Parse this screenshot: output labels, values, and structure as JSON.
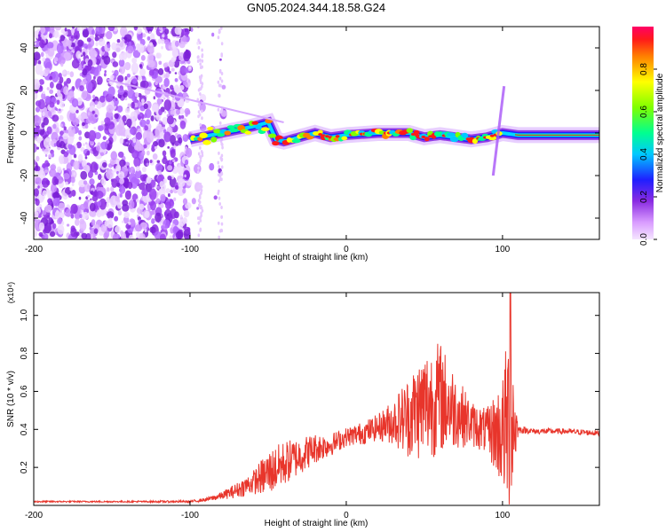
{
  "title": "GN05.2024.344.18.58.G24",
  "chart_data": [
    {
      "type": "heatmap",
      "xlabel": "Height of straight line (km)",
      "ylabel": "Frequency (Hz)",
      "xlim": [
        -200,
        162
      ],
      "ylim": [
        -50,
        50
      ],
      "xticks": [
        -200,
        -100,
        0,
        100
      ],
      "yticks": [
        -40,
        -20,
        0,
        20,
        40
      ],
      "grid": false,
      "colorbar": {
        "label": "Normalized spectral amplitude",
        "range": [
          0,
          1
        ],
        "ticks": [
          0,
          0.2,
          0.4,
          0.6,
          0.8
        ],
        "tick_labels": [
          "0.0",
          "0.2",
          "0.4",
          "0.6",
          "0.8"
        ],
        "colormap": "rainbow",
        "low_color": "#f5e6ff",
        "high_color": "#ff0066"
      },
      "description_regions": [
        {
          "x_range": [
            -200,
            -100
          ],
          "y_range": [
            -50,
            50
          ],
          "pattern": "dense noise"
        },
        {
          "x_range": [
            -100,
            162
          ],
          "y_center_hz": 0,
          "pattern": "narrow carrier line"
        }
      ],
      "carrier_track": [
        {
          "x": -100,
          "y": -3
        },
        {
          "x": -80,
          "y": 0
        },
        {
          "x": -60,
          "y": 3
        },
        {
          "x": -50,
          "y": 5
        },
        {
          "x": -45,
          "y": -3
        },
        {
          "x": -40,
          "y": -4
        },
        {
          "x": -30,
          "y": -2
        },
        {
          "x": -20,
          "y": 0
        },
        {
          "x": -10,
          "y": -2
        },
        {
          "x": 0,
          "y": -1
        },
        {
          "x": 20,
          "y": 0
        },
        {
          "x": 40,
          "y": 0
        },
        {
          "x": 50,
          "y": -2
        },
        {
          "x": 60,
          "y": -1
        },
        {
          "x": 70,
          "y": -2
        },
        {
          "x": 80,
          "y": -3
        },
        {
          "x": 90,
          "y": -2
        },
        {
          "x": 100,
          "y": 0
        },
        {
          "x": 110,
          "y": -1
        },
        {
          "x": 130,
          "y": -1
        },
        {
          "x": 162,
          "y": -1
        }
      ]
    },
    {
      "type": "line",
      "xlabel": "Height of straight line (km)",
      "ylabel": "SNR (10 * v/v)",
      "y_multiplier": "(x10⁴)",
      "xlim": [
        -200,
        162
      ],
      "ylim": [
        0,
        1.12
      ],
      "xticks": [
        -200,
        -100,
        0,
        100
      ],
      "yticks": [
        0.2,
        0.4,
        0.6,
        0.8,
        1.0
      ],
      "ytick_labels": [
        "0.2",
        "0.4",
        "0.6",
        "0.8",
        "1.0"
      ],
      "grid": false,
      "color": "#e8352b",
      "series": [
        {
          "x": [
            -200,
            -180,
            -160,
            -140,
            -120,
            -100,
            -90,
            -80,
            -70,
            -60,
            -50,
            -40,
            -30,
            -20,
            -10,
            0,
            10,
            20,
            30,
            40,
            50,
            60,
            70,
            80,
            90,
            100,
            105,
            110,
            120,
            140,
            162
          ],
          "values": [
            0.02,
            0.02,
            0.02,
            0.02,
            0.02,
            0.02,
            0.03,
            0.05,
            0.08,
            0.12,
            0.17,
            0.22,
            0.26,
            0.3,
            0.32,
            0.36,
            0.38,
            0.41,
            0.44,
            0.47,
            0.53,
            0.57,
            0.5,
            0.43,
            0.39,
            0.38,
            0.45,
            0.4,
            0.39,
            0.39,
            0.38
          ],
          "amplitude": [
            0.004,
            0.004,
            0.004,
            0.004,
            0.005,
            0.006,
            0.01,
            0.02,
            0.04,
            0.06,
            0.12,
            0.12,
            0.1,
            0.08,
            0.06,
            0.05,
            0.06,
            0.07,
            0.12,
            0.22,
            0.3,
            0.3,
            0.2,
            0.12,
            0.12,
            0.3,
            0.6,
            0.02,
            0.015,
            0.015,
            0.015
          ]
        }
      ]
    }
  ]
}
